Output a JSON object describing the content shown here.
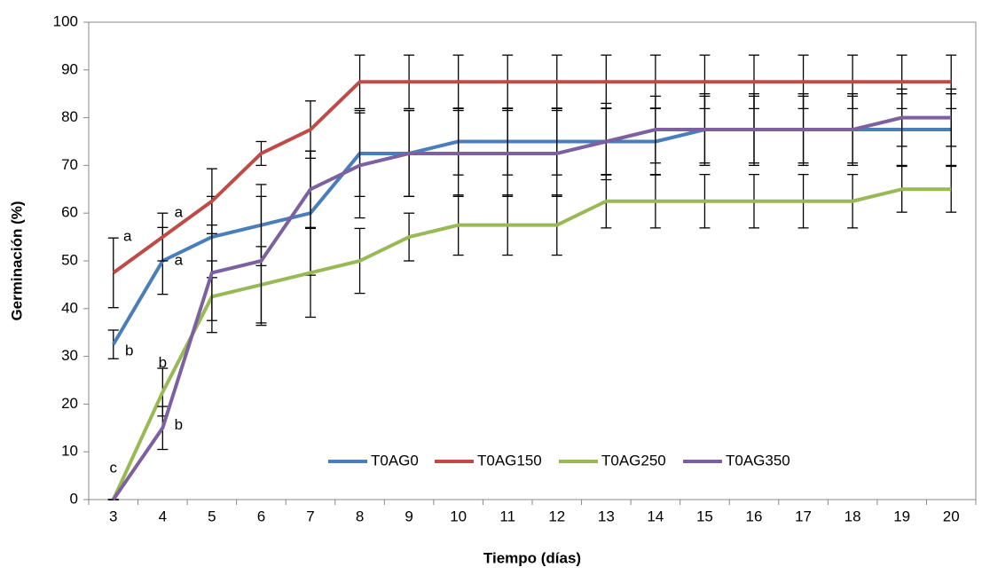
{
  "chart_data": {
    "type": "line",
    "x_label": "Tiempo (días)",
    "y_label": "Germinación (%)",
    "categories": [
      "3",
      "4",
      "5",
      "6",
      "7",
      "8",
      "9",
      "10",
      "11",
      "12",
      "13",
      "14",
      "15",
      "16",
      "17",
      "18",
      "19",
      "20"
    ],
    "series": [
      {
        "name": "T0AG0",
        "color": "#4a7ebb",
        "values": [
          32.5,
          50,
          55,
          57.5,
          60,
          72.5,
          72.5,
          75,
          75,
          75,
          75,
          75,
          77.5,
          77.5,
          77.5,
          77.5,
          77.5,
          77.5
        ],
        "errors": [
          3,
          7,
          8.5,
          8.5,
          13,
          9,
          9,
          7,
          7,
          7,
          7,
          7,
          7.5,
          7.5,
          7.5,
          7.5,
          7.5,
          7.5
        ]
      },
      {
        "name": "T0AG150",
        "color": "#be4b48",
        "values": [
          47.5,
          55,
          62.5,
          72.5,
          77.5,
          87.5,
          87.5,
          87.5,
          87.5,
          87.5,
          87.5,
          87.5,
          87.5,
          87.5,
          87.5,
          87.5,
          87.5,
          87.5
        ],
        "errors": [
          7.3,
          5,
          6.8,
          2.5,
          6,
          5.6,
          5.6,
          5.6,
          5.6,
          5.6,
          5.6,
          5.6,
          5.6,
          5.6,
          5.6,
          5.6,
          5.6,
          5.6
        ]
      },
      {
        "name": "T0AG250",
        "color": "#98b954",
        "values": [
          0,
          22.5,
          42.5,
          45,
          47.5,
          50,
          55,
          57.5,
          57.5,
          57.5,
          62.5,
          62.5,
          62.5,
          62.5,
          62.5,
          62.5,
          65,
          65
        ],
        "errors": [
          0,
          5,
          7.5,
          8,
          9.3,
          6.8,
          5,
          6.3,
          6.3,
          6.3,
          5.6,
          5.6,
          5.6,
          5.6,
          5.6,
          5.6,
          4.8,
          4.8
        ]
      },
      {
        "name": "T0AG350",
        "color": "#7d60a0",
        "values": [
          0,
          15,
          47.5,
          50,
          65,
          70,
          72.5,
          72.5,
          72.5,
          72.5,
          75,
          77.5,
          77.5,
          77.5,
          77.5,
          77.5,
          80,
          80
        ],
        "errors": [
          0,
          4.5,
          10,
          13.5,
          8,
          11,
          9,
          9,
          9,
          9,
          8,
          7,
          7,
          7,
          7,
          7,
          6,
          6
        ]
      }
    ],
    "annotations": [
      "a",
      "a",
      "a",
      "b",
      "b",
      "b",
      "c"
    ],
    "ylim": [
      0,
      100
    ],
    "yticks": [
      0,
      10,
      20,
      30,
      40,
      50,
      60,
      70,
      80,
      90,
      100
    ],
    "grid": false,
    "legend": "lower right"
  }
}
